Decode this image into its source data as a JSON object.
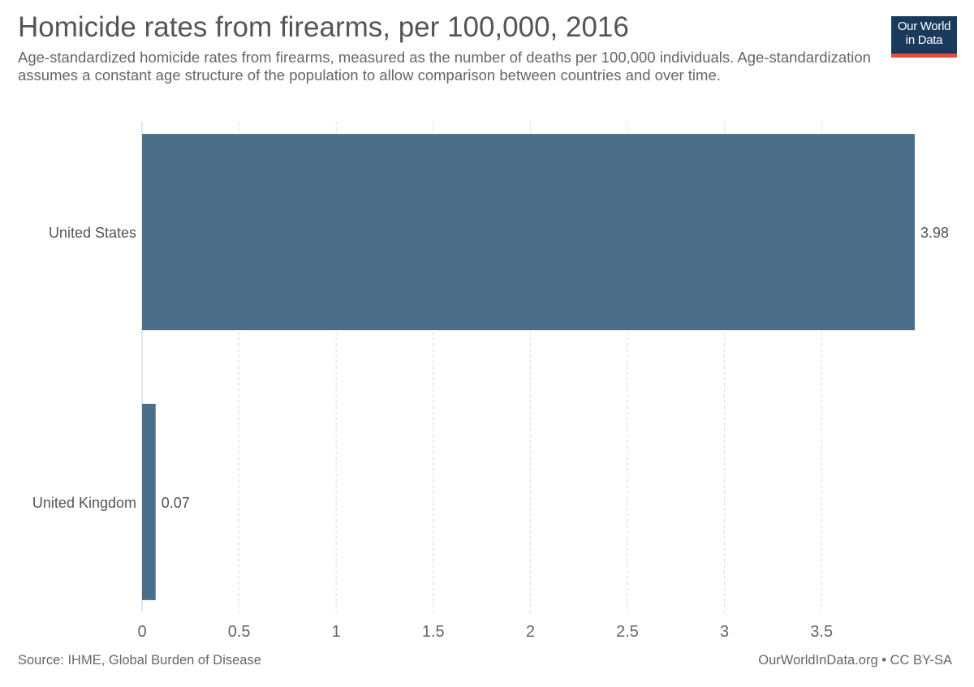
{
  "header": {
    "title": "Homicide rates from firearms, per 100,000, 2016",
    "subtitle": "Age-standardized homicide rates from firearms, measured as the number of deaths per 100,000 individuals. Age-standardization assumes a constant age structure of the population to allow comparison between countries and over time."
  },
  "logo": {
    "line1": "Our World",
    "line2": "in Data"
  },
  "footer": {
    "source": "Source: IHME, Global Burden of Disease",
    "credit": "OurWorldInData.org • CC BY-SA"
  },
  "colors": {
    "bar": "#4b6e8a",
    "grid": "#dddddd",
    "logo_bg": "#1a3a5c",
    "logo_accent": "#e0503d"
  },
  "chart_data": {
    "type": "bar",
    "orientation": "horizontal",
    "title": "Homicide rates from firearms, per 100,000, 2016",
    "categories": [
      "United States",
      "United Kingdom"
    ],
    "values": [
      3.98,
      0.07
    ],
    "value_labels": [
      "3.98",
      "0.07"
    ],
    "xlim": [
      0,
      3.98
    ],
    "xticks": [
      0,
      0.5,
      1,
      1.5,
      2,
      2.5,
      3,
      3.5
    ],
    "xtick_labels": [
      "0",
      "0.5",
      "1",
      "1.5",
      "2",
      "2.5",
      "3",
      "3.5"
    ],
    "grid": true,
    "xlabel": "",
    "ylabel": ""
  }
}
